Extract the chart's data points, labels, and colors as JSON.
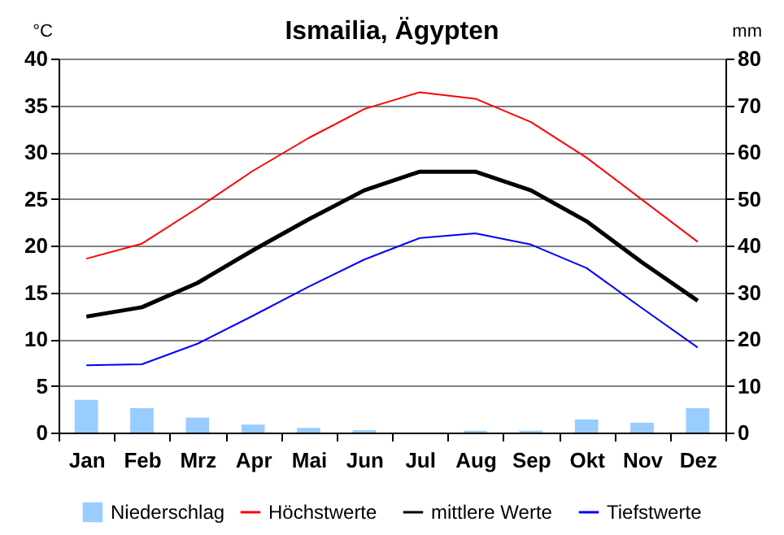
{
  "chart_data": {
    "type": "line",
    "title": "Ismailia, Ägypten",
    "ylabel": "°C",
    "y2label": "mm",
    "categories": [
      "Jan",
      "Feb",
      "Mrz",
      "Apr",
      "Mai",
      "Jun",
      "Jul",
      "Aug",
      "Sep",
      "Okt",
      "Nov",
      "Dez"
    ],
    "ylim": [
      0,
      40
    ],
    "yticks": [
      0,
      5,
      10,
      15,
      20,
      25,
      30,
      35,
      40
    ],
    "y2lim": [
      0,
      80
    ],
    "y2ticks": [
      0,
      10,
      20,
      30,
      40,
      50,
      60,
      70,
      80
    ],
    "grid": "y",
    "legend": "bottom",
    "series": [
      {
        "name": "Niederschlag",
        "type": "bar",
        "axis": "y2",
        "color": "#99ccff",
        "values": [
          7,
          5.2,
          3.2,
          1.7,
          1,
          0.5,
          0,
          0.4,
          0.4,
          2.8,
          2.1,
          5.2
        ]
      },
      {
        "name": "Höchstwerte",
        "color": "#ff0000",
        "values": [
          18.6,
          20.2,
          24,
          28,
          31.5,
          34.6,
          36.4,
          35.7,
          33.2,
          29.4,
          24.9,
          20.4
        ]
      },
      {
        "name": "mittlere Werte",
        "color": "#000000",
        "values": [
          12.4,
          13.4,
          16,
          19.5,
          22.8,
          25.9,
          27.9,
          27.9,
          25.9,
          22.6,
          18.2,
          14.1
        ]
      },
      {
        "name": "Tiefstwerte",
        "color": "#0000ff",
        "values": [
          7.2,
          7.3,
          9.5,
          12.5,
          15.6,
          18.5,
          20.8,
          21.3,
          20.1,
          17.6,
          13.3,
          9.1
        ]
      }
    ]
  }
}
